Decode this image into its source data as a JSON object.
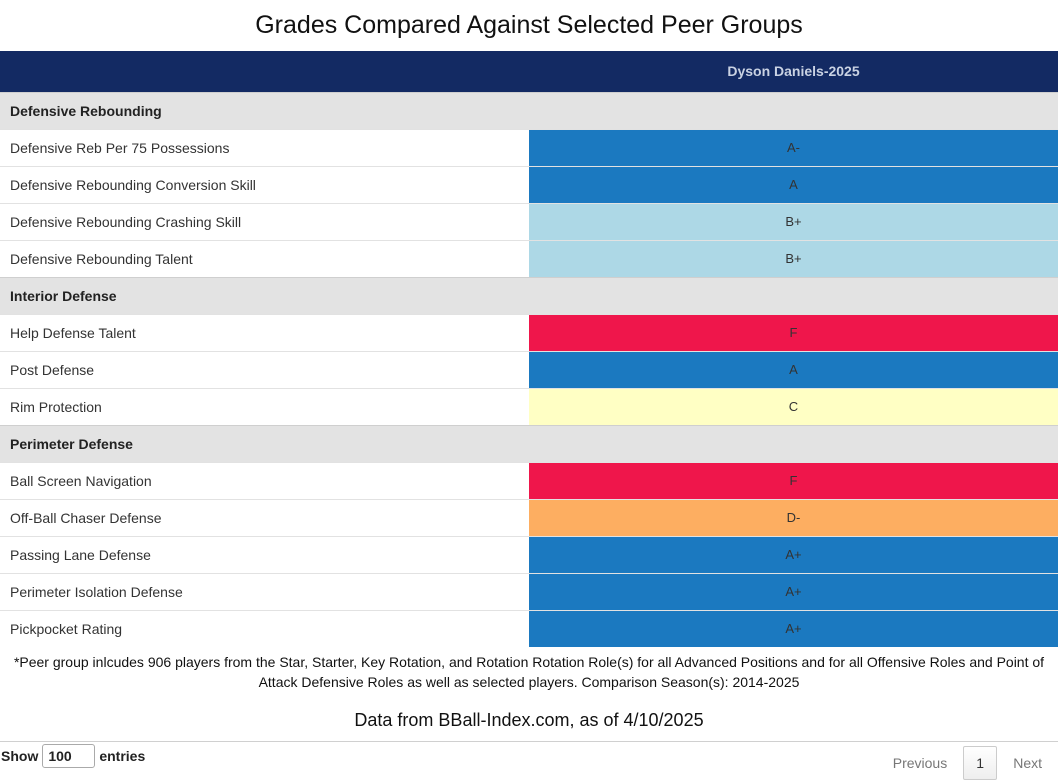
{
  "title": "Grades Compared Against Selected Peer Groups",
  "table": {
    "header": {
      "label_col": "",
      "player_col": "Dyson Daniels-2025"
    },
    "groups": [
      {
        "name": "Defensive Rebounding",
        "rows": [
          {
            "label": "Defensive Reb Per 75 Possessions",
            "grade": "A-",
            "color": "#1b79c0"
          },
          {
            "label": "Defensive Rebounding Conversion Skill",
            "grade": "A",
            "color": "#1b79c0"
          },
          {
            "label": "Defensive Rebounding Crashing Skill",
            "grade": "B+",
            "color": "#add8e6"
          },
          {
            "label": "Defensive Rebounding Talent",
            "grade": "B+",
            "color": "#add8e6"
          }
        ]
      },
      {
        "name": "Interior Defense",
        "rows": [
          {
            "label": "Help Defense Talent",
            "grade": "F",
            "color": "#ef164b"
          },
          {
            "label": "Post Defense",
            "grade": "A",
            "color": "#1b79c0"
          },
          {
            "label": "Rim Protection",
            "grade": "C",
            "color": "#ffffc4"
          }
        ]
      },
      {
        "name": "Perimeter Defense",
        "rows": [
          {
            "label": "Ball Screen Navigation",
            "grade": "F",
            "color": "#ef164b"
          },
          {
            "label": "Off-Ball Chaser Defense",
            "grade": "D-",
            "color": "#fdae61"
          },
          {
            "label": "Passing Lane Defense",
            "grade": "A+",
            "color": "#1b79c0"
          },
          {
            "label": "Perimeter Isolation Defense",
            "grade": "A+",
            "color": "#1b79c0"
          },
          {
            "label": "Pickpocket Rating",
            "grade": "A+",
            "color": "#1b79c0"
          }
        ]
      }
    ]
  },
  "footnote": "*Peer group inlcudes 906 players from the Star, Starter, Key Rotation, and Rotation Rotation Role(s) for all Advanced Positions and for all Offensive Roles and Point of Attack Defensive Roles as well as selected players. Comparison Season(s): 2014-2025",
  "source": "Data from BBall-Index.com, as of 4/10/2025",
  "length_menu": {
    "show_label": "Show",
    "value": "100",
    "entries_label": "entries"
  },
  "pagination": {
    "previous": "Previous",
    "current": "1",
    "next": "Next"
  }
}
